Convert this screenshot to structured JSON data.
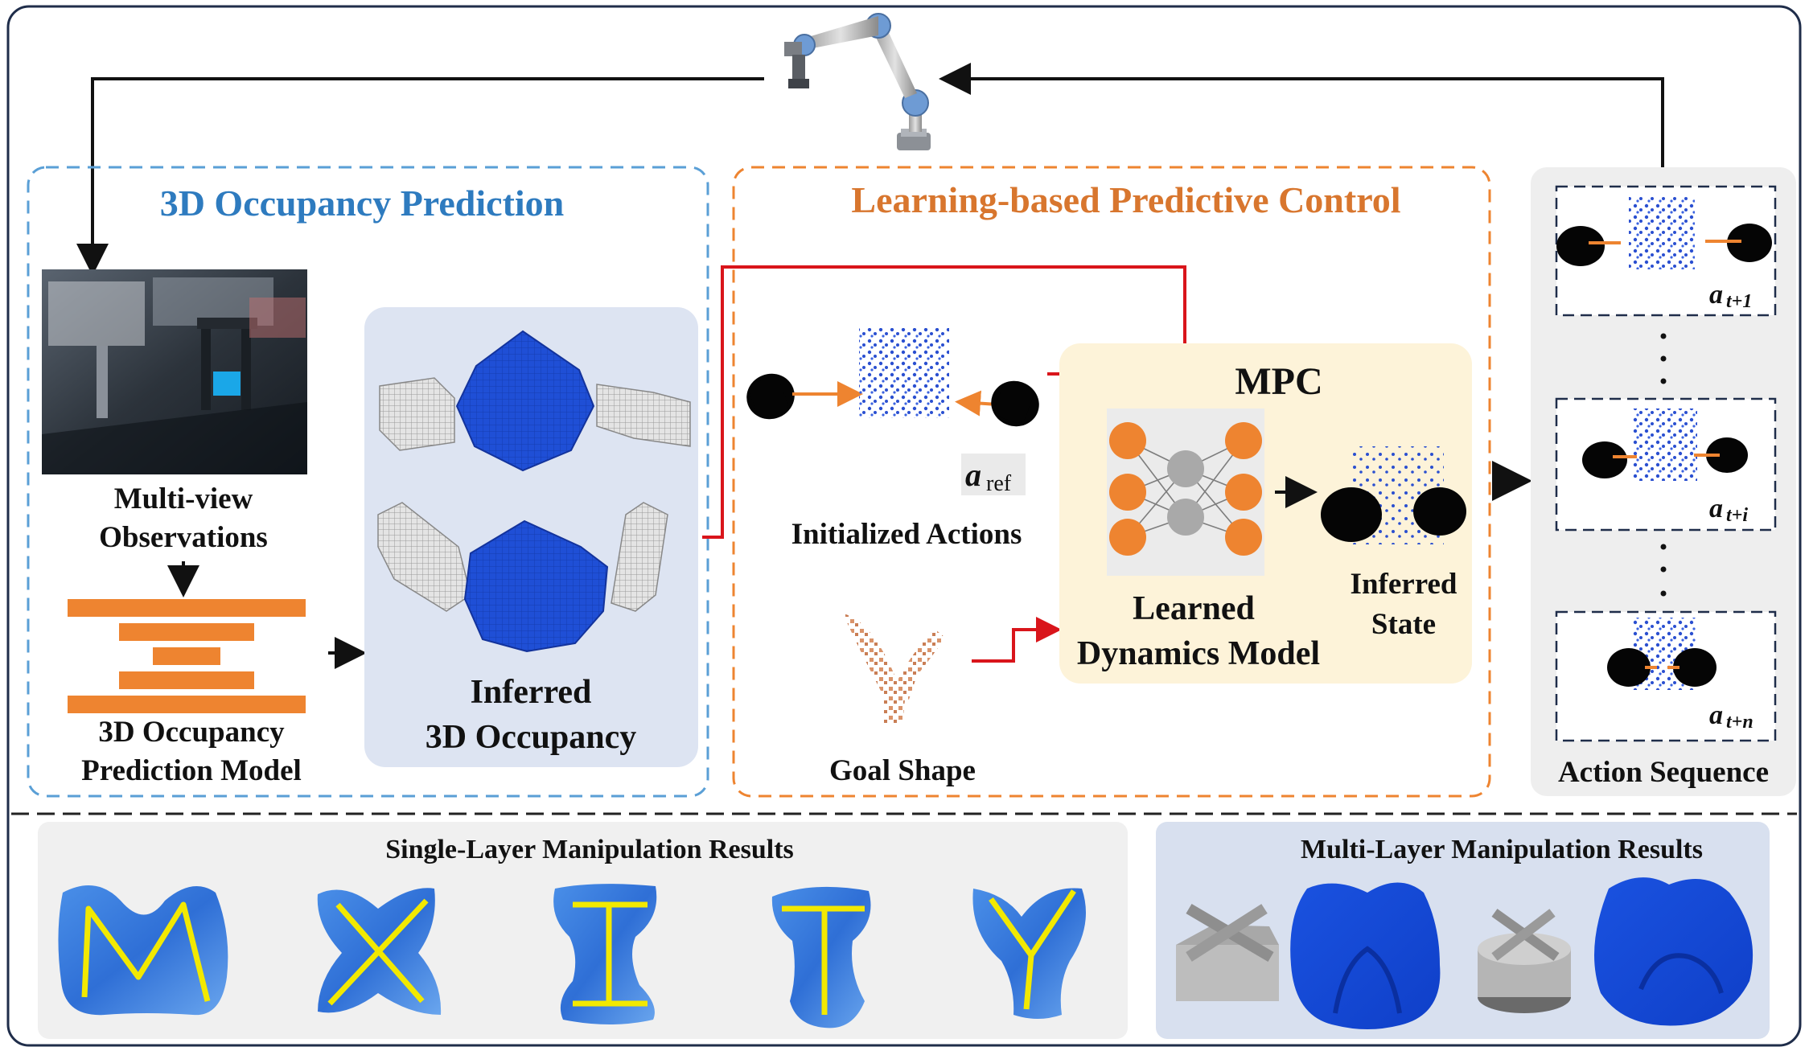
{
  "sections": {
    "occupancy": {
      "title": "3D Occupancy Prediction",
      "multi_view_line1": "Multi-view",
      "multi_view_line2": "Observations",
      "model_line1": "3D Occupancy",
      "model_line2": "Prediction Model",
      "inferred_line1": "Inferred",
      "inferred_line2": "3D Occupancy"
    },
    "control": {
      "title": "Learning-based Predictive Control",
      "mpc": "MPC",
      "a_ref_main": "a",
      "a_ref_sub": "ref",
      "initialized_actions": "Initialized Actions",
      "goal_shape": "Goal Shape",
      "dynamics_line1": "Learned",
      "dynamics_line2": "Dynamics Model",
      "inferred_state_line1": "Inferred",
      "inferred_state_line2": "State"
    },
    "action_sequence": {
      "title": "Action Sequence",
      "labels": [
        {
          "main": "a",
          "sub": "t+1"
        },
        {
          "main": "a",
          "sub": "t+i"
        },
        {
          "main": "a",
          "sub": "t+n"
        }
      ]
    },
    "results": {
      "single_title": "Single-Layer Manipulation Results",
      "multi_title": "Multi-Layer Manipulation Results",
      "letters": [
        "M",
        "X",
        "I",
        "T",
        "Y"
      ]
    }
  },
  "colors": {
    "blue_title": "#2e7bbf",
    "orange_title": "#d8762e",
    "orange_block": "#ee8430",
    "red_arrow": "#d9151b",
    "clay_blue": "#1f5fe0",
    "mpc_bg": "#fdf3d9",
    "occupancy_panel_bg": "#dde4f2",
    "action_panel_bg": "#eeeeee"
  }
}
